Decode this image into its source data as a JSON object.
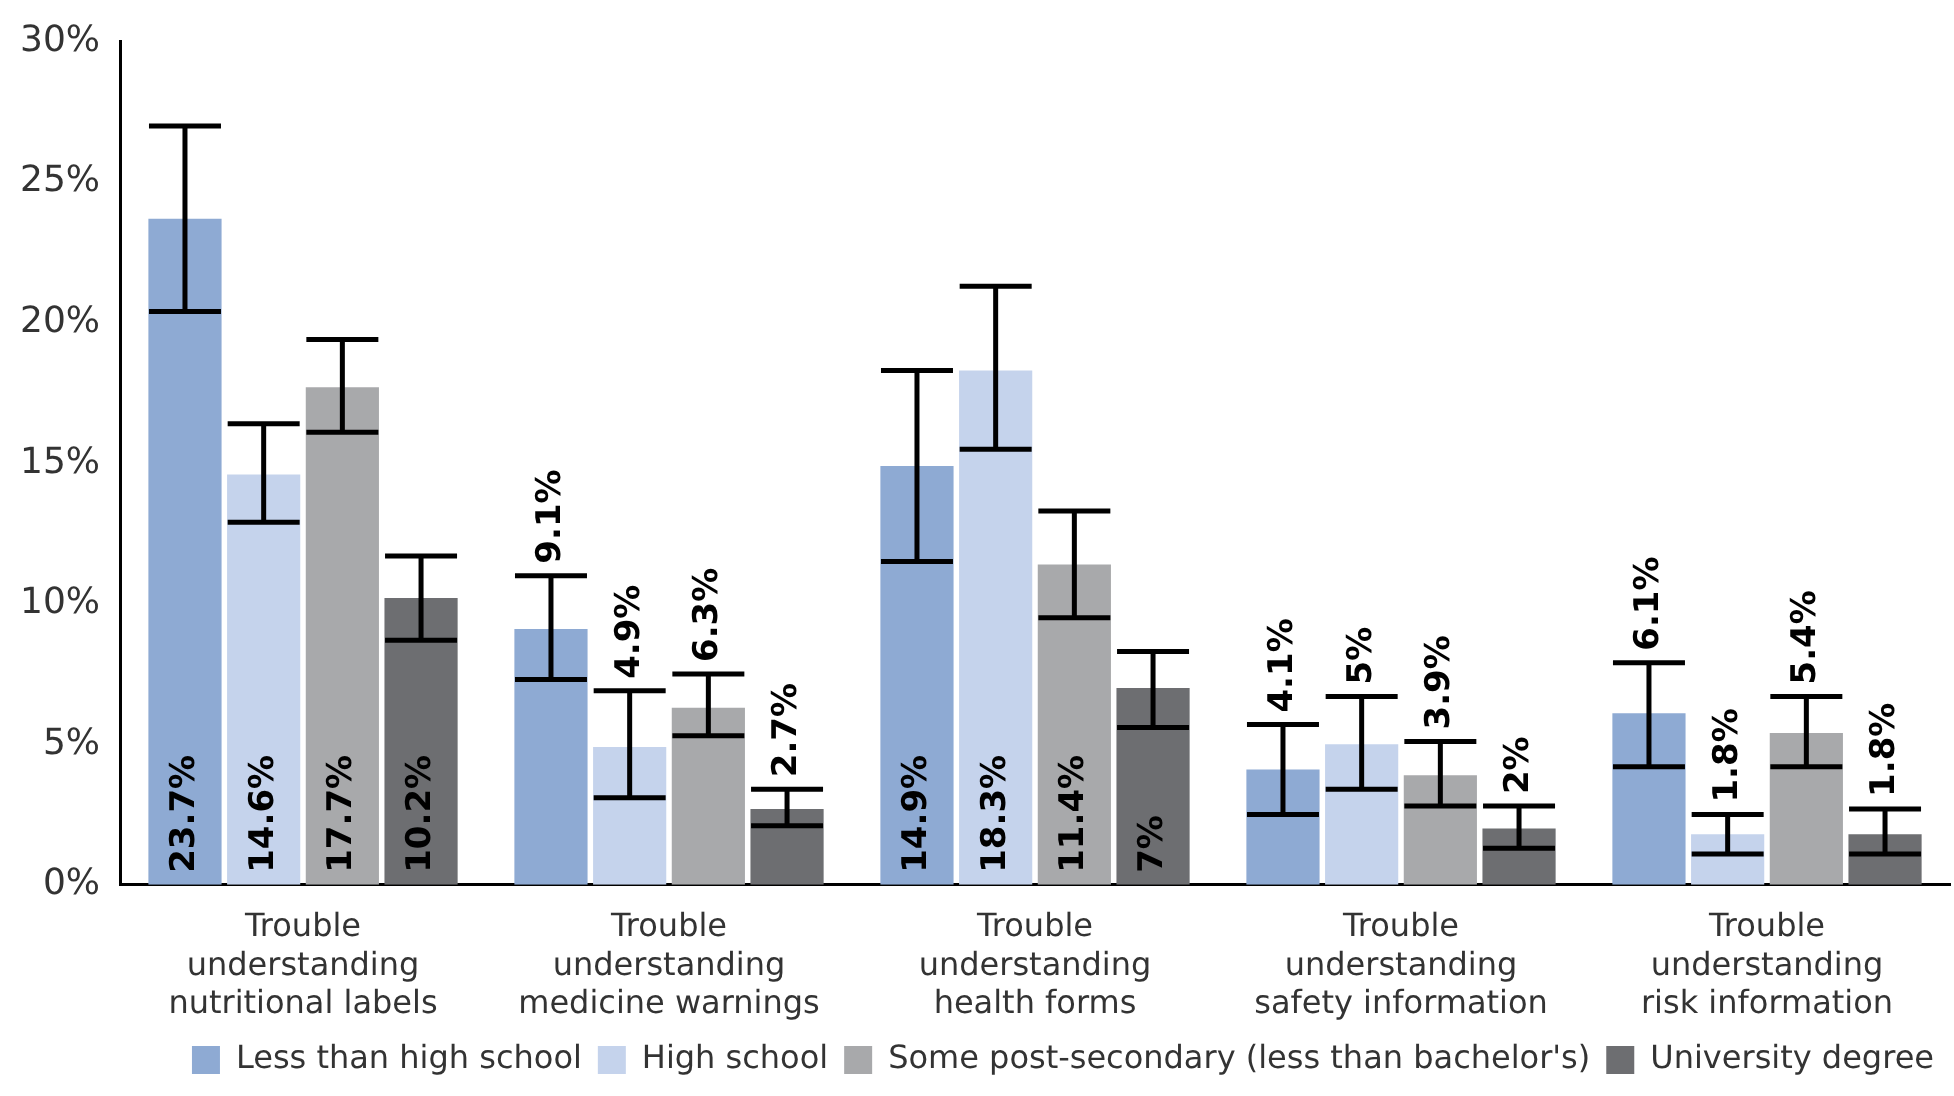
{
  "chart_data": {
    "type": "bar",
    "categories": [
      "Trouble understanding nutritional labels",
      "Trouble understanding medicine warnings",
      "Trouble understanding health forms",
      "Trouble understanding safety information",
      "Trouble understanding risk information"
    ],
    "series": [
      {
        "name": "Less than high school",
        "color": "#8eaad3",
        "values": [
          23.7,
          9.1,
          14.9,
          4.1,
          6.1
        ],
        "value_labels": [
          "23.7%",
          "9.1%",
          "14.9%",
          "4.1%",
          "6.1%"
        ],
        "errors": [
          [
            20.4,
            27.0
          ],
          [
            7.3,
            11.0
          ],
          [
            11.5,
            18.3
          ],
          [
            2.5,
            5.7
          ],
          [
            4.2,
            7.9
          ]
        ]
      },
      {
        "name": "High school",
        "color": "#c5d3ec",
        "values": [
          14.6,
          4.9,
          18.3,
          5,
          1.8
        ],
        "value_labels": [
          "14.6%",
          "4.9%",
          "18.3%",
          "5%",
          "1.8%"
        ],
        "errors": [
          [
            12.9,
            16.4
          ],
          [
            3.1,
            6.9
          ],
          [
            15.5,
            21.3
          ],
          [
            3.4,
            6.7
          ],
          [
            1.1,
            2.5
          ]
        ]
      },
      {
        "name": "Some post-secondary (less than bachelor's)",
        "color": "#a8a9ab",
        "values": [
          17.7,
          6.3,
          11.4,
          3.9,
          5.4
        ],
        "value_labels": [
          "17.7%",
          "6.3%",
          "11.4%",
          "3.9%",
          "5.4%"
        ],
        "errors": [
          [
            16.1,
            19.4
          ],
          [
            5.3,
            7.5
          ],
          [
            9.5,
            13.3
          ],
          [
            2.8,
            5.1
          ],
          [
            4.2,
            6.7
          ]
        ]
      },
      {
        "name": "University degree",
        "color": "#6d6e71",
        "values": [
          10.2,
          2.7,
          7,
          2,
          1.8
        ],
        "value_labels": [
          "10.2%",
          "2.7%",
          "7%",
          "2%",
          "1.8%"
        ],
        "errors": [
          [
            8.7,
            11.7
          ],
          [
            2.1,
            3.4
          ],
          [
            5.6,
            8.3
          ],
          [
            1.3,
            2.8
          ],
          [
            1.1,
            2.7
          ]
        ]
      }
    ],
    "ylim": [
      0,
      30
    ],
    "yticks": [
      {
        "value": 0,
        "label": "0%"
      },
      {
        "value": 5,
        "label": "5%"
      },
      {
        "value": 10,
        "label": "10%"
      },
      {
        "value": 15,
        "label": "15%"
      },
      {
        "value": 20,
        "label": "20%"
      },
      {
        "value": 25,
        "label": "25%"
      },
      {
        "value": 30,
        "label": "30%"
      }
    ],
    "grid": false,
    "legend": "bottom"
  }
}
